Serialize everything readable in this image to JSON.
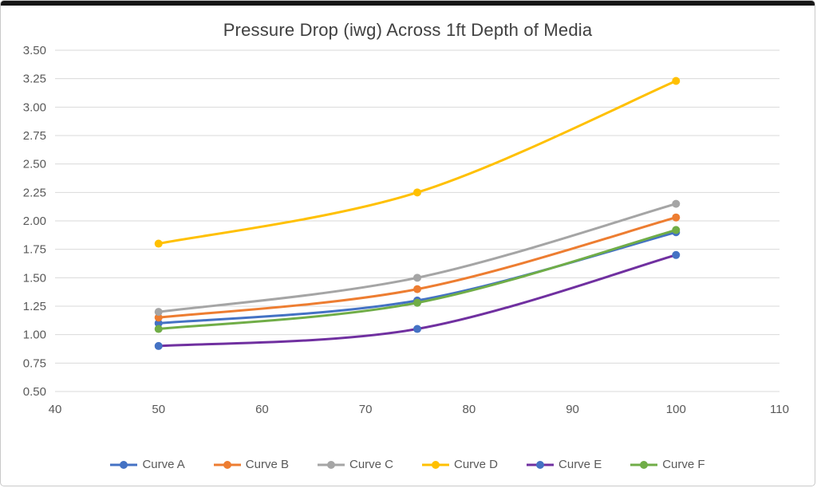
{
  "chart_data": {
    "type": "line",
    "title": "Pressure Drop (iwg) Across 1ft Depth of Media",
    "x": [
      50,
      75,
      100
    ],
    "series": [
      {
        "name": "Curve A",
        "color": "#4472C4",
        "marker_color": "#4472C4",
        "values": [
          1.1,
          1.3,
          1.9
        ]
      },
      {
        "name": "Curve B",
        "color": "#ED7D31",
        "marker_color": "#ED7D31",
        "values": [
          1.15,
          1.4,
          2.03
        ]
      },
      {
        "name": "Curve C",
        "color": "#A5A5A5",
        "marker_color": "#A5A5A5",
        "values": [
          1.2,
          1.5,
          2.15
        ]
      },
      {
        "name": "Curve D",
        "color": "#FFC000",
        "marker_color": "#FFC000",
        "values": [
          1.8,
          2.25,
          3.23
        ]
      },
      {
        "name": "Curve E",
        "color": "#7030A0",
        "marker_color": "#4472C4",
        "values": [
          0.9,
          1.05,
          1.7
        ]
      },
      {
        "name": "Curve F",
        "color": "#70AD47",
        "marker_color": "#70AD47",
        "values": [
          1.05,
          1.28,
          1.92
        ]
      }
    ],
    "xlim": [
      40,
      110
    ],
    "ylim": [
      0.5,
      3.5
    ],
    "x_ticks": [
      "40",
      "50",
      "60",
      "70",
      "80",
      "90",
      "100",
      "110"
    ],
    "y_ticks": [
      "3.50",
      "3.25",
      "3.00",
      "2.75",
      "2.50",
      "2.25",
      "2.00",
      "1.75",
      "1.50",
      "1.25",
      "1.00",
      "0.75",
      "0.50"
    ],
    "grid": "horizontal",
    "legend_position": "bottom"
  }
}
